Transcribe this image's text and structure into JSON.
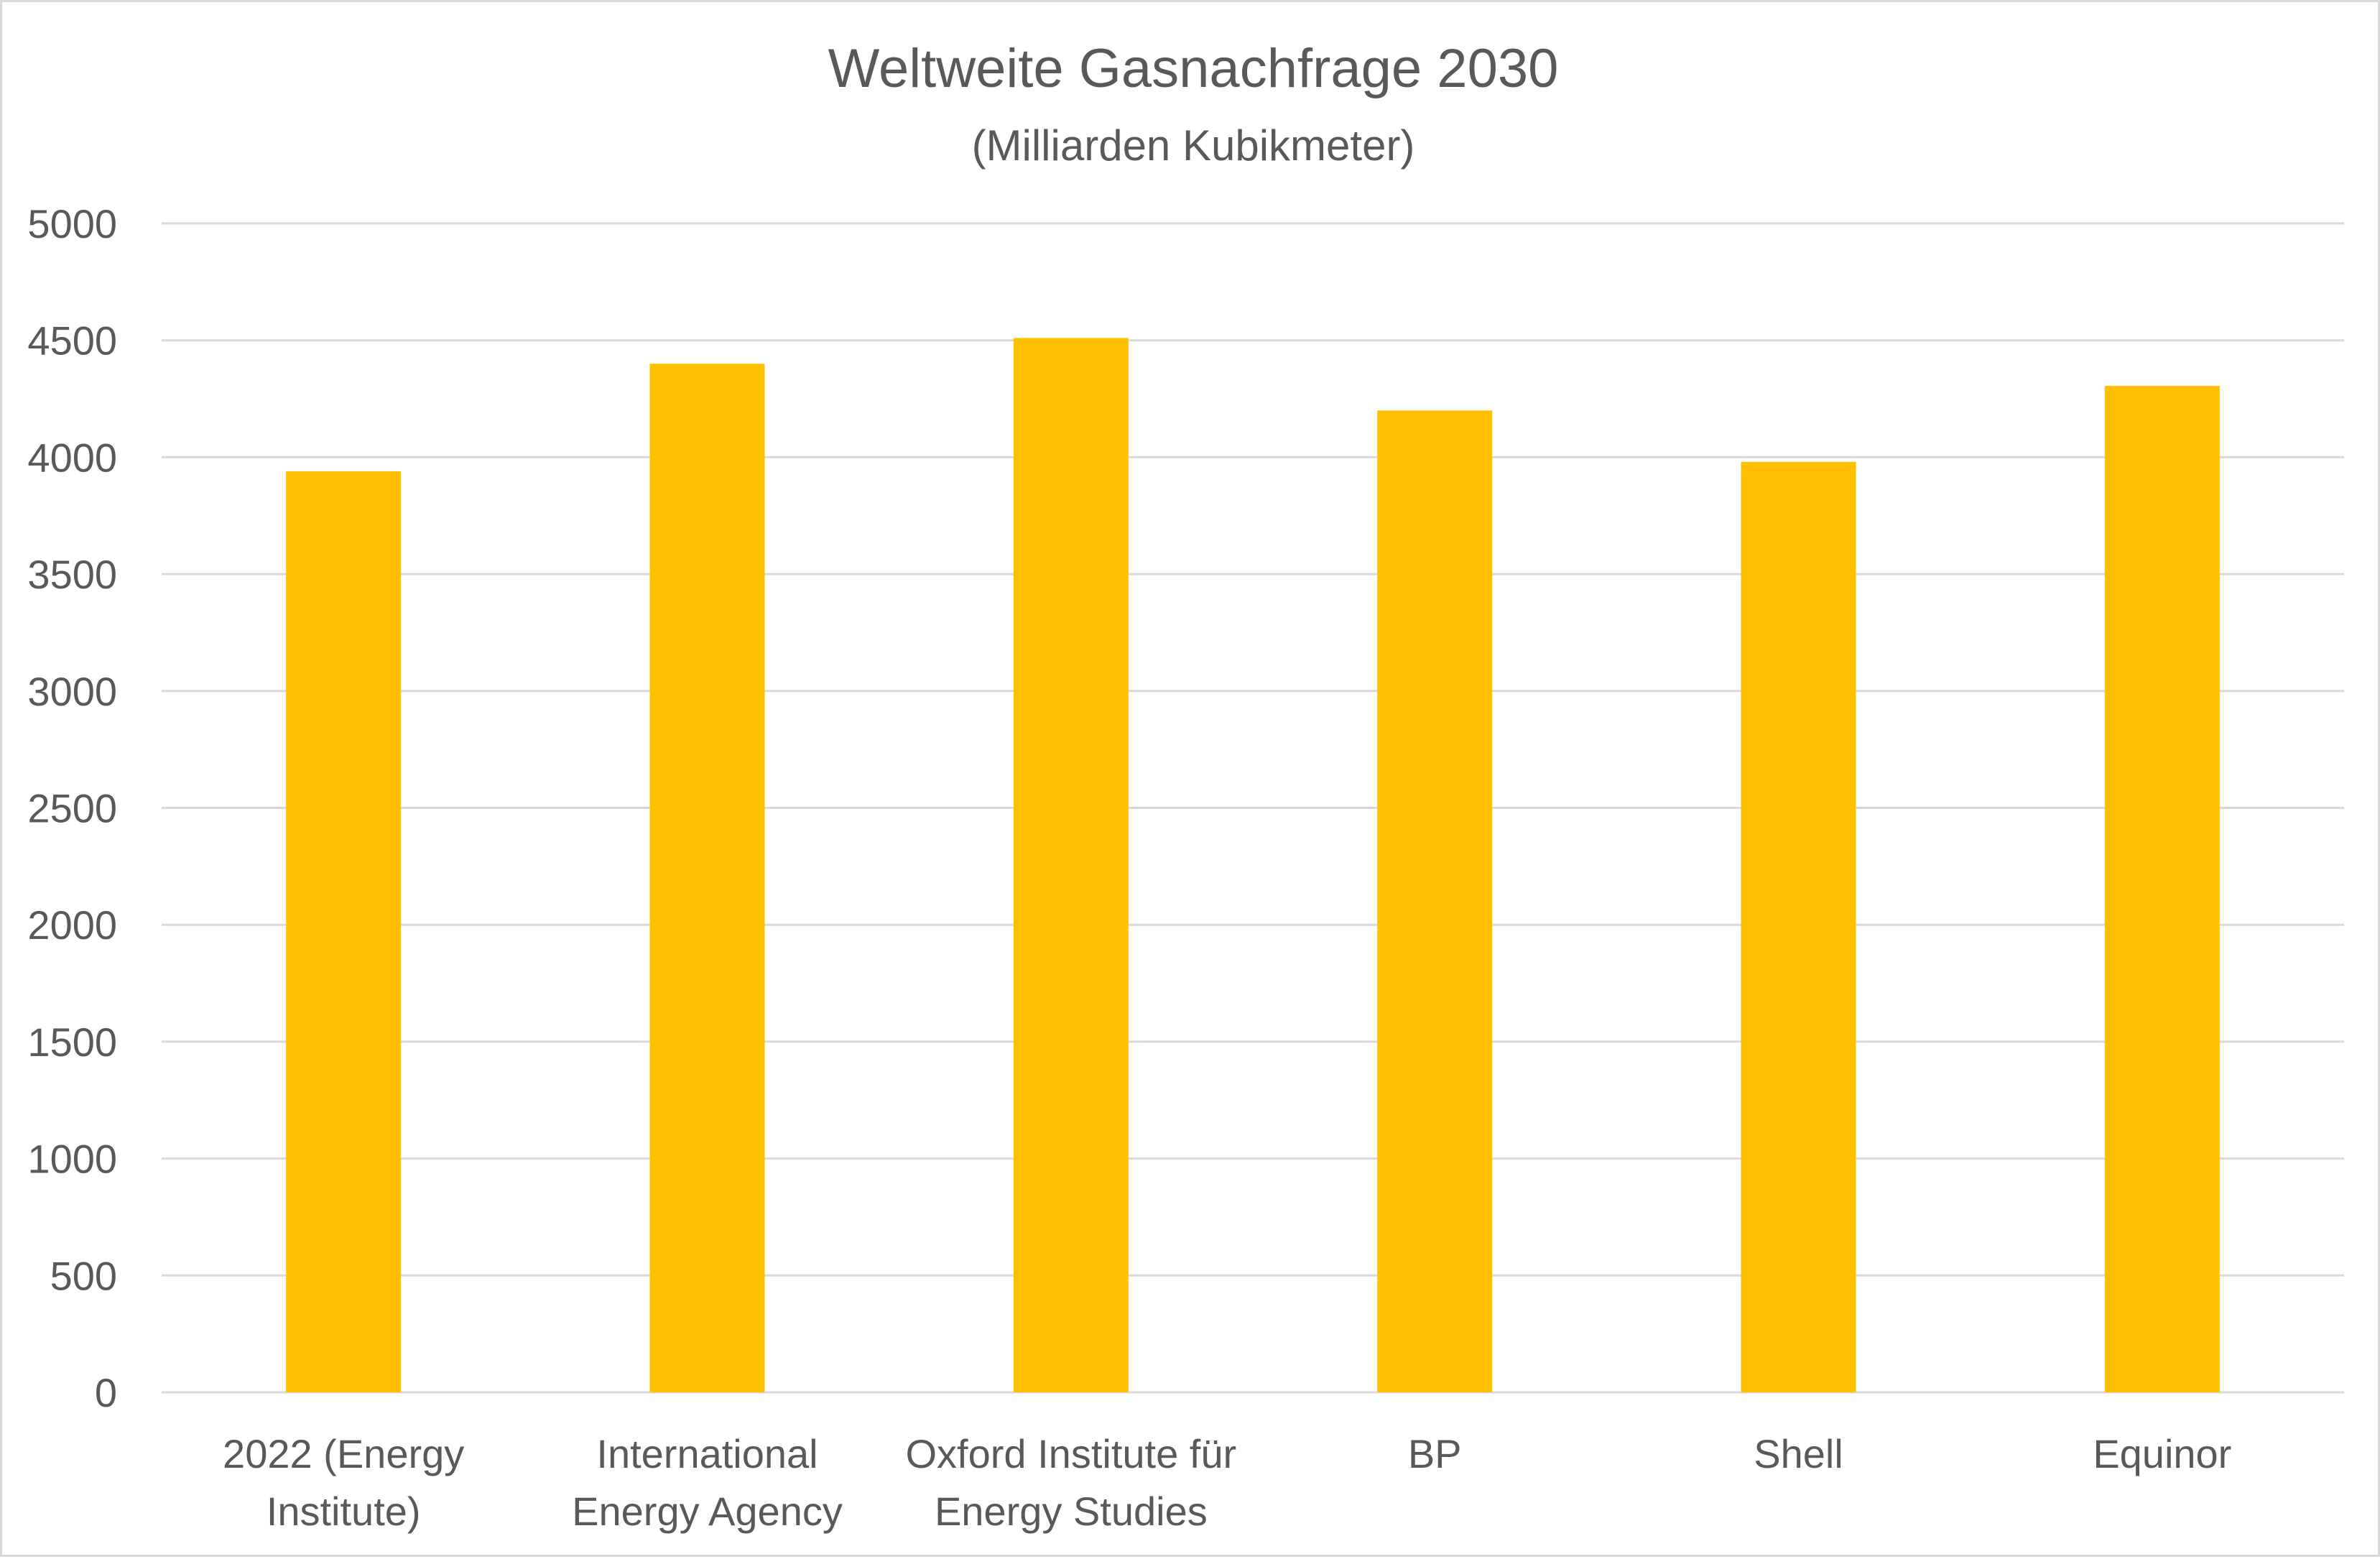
{
  "chart_data": {
    "type": "bar",
    "title": "Weltweite Gasnachfrage 2030",
    "subtitle": "(Milliarden Kubikmeter)",
    "xlabel": "",
    "ylabel": "",
    "ylim": [
      0,
      5000
    ],
    "yticks": [
      "0",
      "500",
      "1000",
      "1500",
      "2000",
      "2500",
      "3000",
      "3500",
      "4000",
      "4500",
      "5000"
    ],
    "grid": true,
    "legend": "none",
    "categories": [
      [
        "2022 (Energy",
        "Institute)"
      ],
      [
        "International",
        "Energy Agency"
      ],
      [
        "Oxford Institute für",
        "Energy Studies"
      ],
      [
        "BP"
      ],
      [
        "Shell"
      ],
      [
        "Equinor"
      ]
    ],
    "values": [
      3940,
      4400,
      4510,
      4200,
      3980,
      4305
    ],
    "colors": {
      "bar": "#FFC000",
      "grid": "#d9d9d9",
      "text": "#595959"
    }
  }
}
